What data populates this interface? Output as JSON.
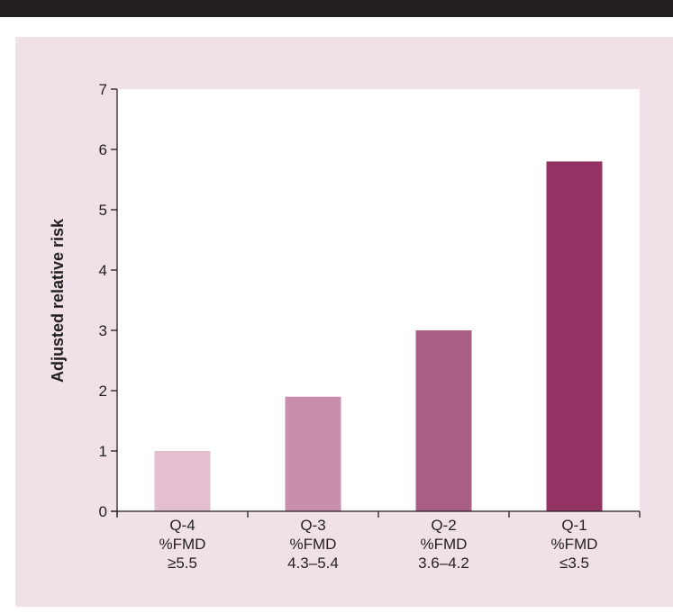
{
  "colors": {
    "top_bar": "#231f20",
    "panel_background": "#efe1e7",
    "plot_background": "#ffffff",
    "axis": "#231f20"
  },
  "chart_data": {
    "type": "bar",
    "ylabel": "Adjusted relative risk",
    "ylim": [
      0,
      7
    ],
    "y_ticks": [
      "0",
      "1",
      "2",
      "3",
      "4",
      "5",
      "6",
      "7"
    ],
    "categories": [
      {
        "lines": [
          "Q-4",
          "%FMD",
          "≥5.5"
        ]
      },
      {
        "lines": [
          "Q-3",
          "%FMD",
          "4.3–5.4"
        ]
      },
      {
        "lines": [
          "Q-2",
          "%FMD",
          "3.6–4.2"
        ]
      },
      {
        "lines": [
          "Q-1",
          "%FMD",
          "≤3.5"
        ]
      }
    ],
    "values": [
      1.0,
      1.9,
      3.0,
      5.8
    ],
    "bar_colors": [
      "#e3bfcf",
      "#c98faa",
      "#a95f84",
      "#933263"
    ],
    "grid": false,
    "legend": "none"
  }
}
